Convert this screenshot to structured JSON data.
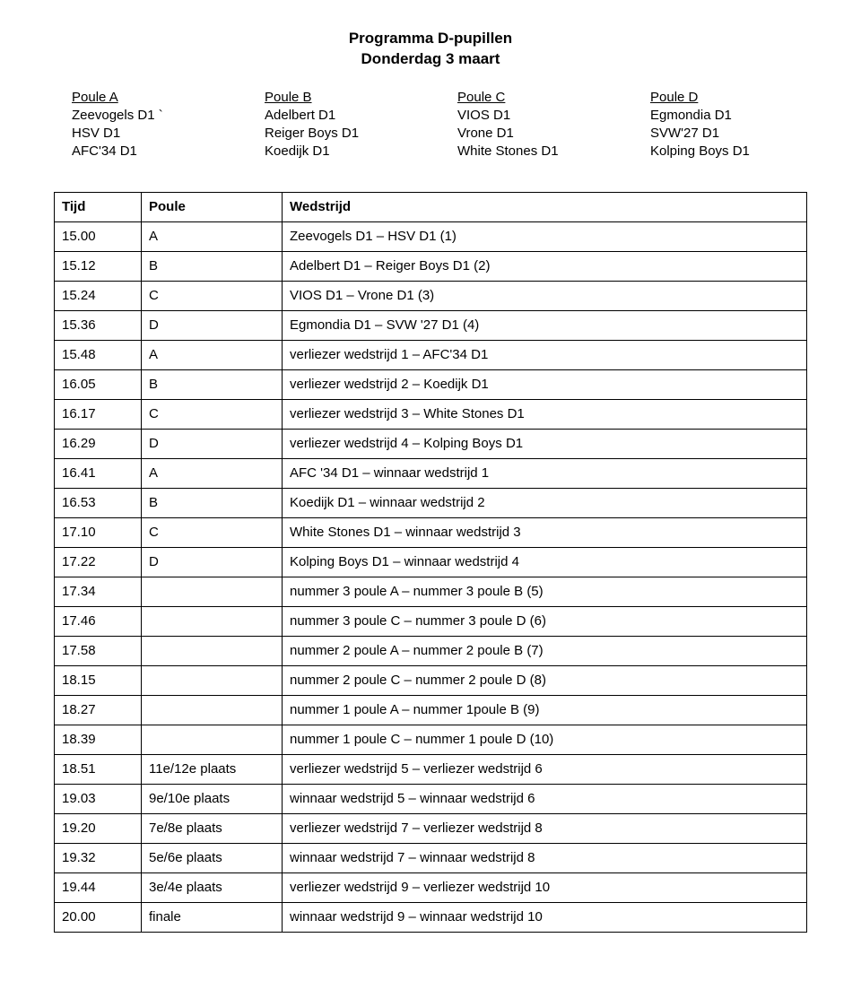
{
  "title_line1": "Programma D-pupillen",
  "title_line2": "Donderdag 3 maart",
  "poules": [
    {
      "header": "Poule A",
      "teams": [
        "Zeevogels D1 `",
        "HSV D1",
        "AFC'34 D1"
      ]
    },
    {
      "header": "Poule B",
      "teams": [
        "Adelbert D1",
        "Reiger Boys D1",
        "Koedijk D1"
      ]
    },
    {
      "header": "Poule C",
      "teams": [
        "VIOS D1",
        "Vrone D1",
        "White Stones D1"
      ]
    },
    {
      "header": "Poule D",
      "teams": [
        "Egmondia D1",
        "SVW'27 D1",
        "Kolping Boys D1"
      ]
    }
  ],
  "schedule": {
    "headers": [
      "Tijd",
      "Poule",
      "Wedstrijd"
    ],
    "rows": [
      [
        "15.00",
        "A",
        "Zeevogels D1 – HSV D1 (1)"
      ],
      [
        "15.12",
        "B",
        "Adelbert D1 – Reiger Boys D1 (2)"
      ],
      [
        "15.24",
        "C",
        "VIOS D1 – Vrone D1 (3)"
      ],
      [
        "15.36",
        "D",
        "Egmondia D1 – SVW '27 D1 (4)"
      ],
      [
        "15.48",
        "A",
        "verliezer wedstrijd 1 – AFC'34 D1"
      ],
      [
        "16.05",
        "B",
        "verliezer wedstrijd 2 – Koedijk D1"
      ],
      [
        "16.17",
        "C",
        "verliezer wedstrijd 3 – White Stones D1"
      ],
      [
        "16.29",
        "D",
        "verliezer wedstrijd 4 – Kolping Boys D1"
      ],
      [
        "16.41",
        "A",
        "AFC '34 D1 – winnaar wedstrijd 1"
      ],
      [
        "16.53",
        "B",
        "Koedijk D1 – winnaar wedstrijd 2"
      ],
      [
        "17.10",
        "C",
        "White Stones D1 – winnaar wedstrijd 3"
      ],
      [
        "17.22",
        "D",
        "Kolping Boys D1 – winnaar wedstrijd 4"
      ],
      [
        "17.34",
        "",
        "nummer 3 poule A – nummer 3 poule B (5)"
      ],
      [
        "17.46",
        "",
        "nummer 3 poule C – nummer 3 poule D (6)"
      ],
      [
        "17.58",
        "",
        "nummer 2 poule A – nummer 2 poule B (7)"
      ],
      [
        "18.15",
        "",
        "nummer 2 poule C – nummer 2 poule D (8)"
      ],
      [
        "18.27",
        "",
        "nummer 1 poule A – nummer 1poule B (9)"
      ],
      [
        "18.39",
        "",
        "nummer 1 poule C – nummer 1 poule D (10)"
      ],
      [
        "18.51",
        "11e/12e plaats",
        "verliezer wedstrijd 5 – verliezer wedstrijd 6"
      ],
      [
        "19.03",
        "9e/10e plaats",
        "winnaar wedstrijd 5 – winnaar wedstrijd 6"
      ],
      [
        "19.20",
        "7e/8e plaats",
        "verliezer wedstrijd 7 – verliezer wedstrijd 8"
      ],
      [
        "19.32",
        "5e/6e plaats",
        "winnaar wedstrijd 7 – winnaar wedstrijd 8"
      ],
      [
        "19.44",
        "3e/4e plaats",
        "verliezer wedstrijd 9 – verliezer wedstrijd 10"
      ],
      [
        "20.00",
        "finale",
        "winnaar wedstrijd 9 – winnaar wedstrijd 10"
      ]
    ]
  }
}
